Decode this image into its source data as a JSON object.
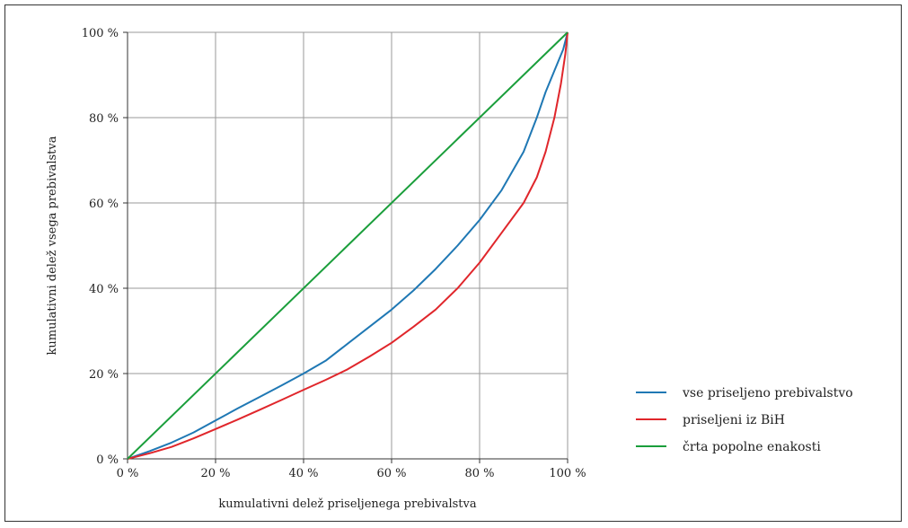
{
  "chart_data": {
    "type": "line",
    "title": "",
    "xlabel": "kumulativni delež priseljenega prebivalstva",
    "ylabel": "kumulativni delež vsega prebivalstva",
    "xlim": [
      0,
      100
    ],
    "ylim": [
      0,
      100
    ],
    "grid": true,
    "legend_position": "bottom-right",
    "x_ticks": [
      "0 %",
      "20 %",
      "40 %",
      "60 %",
      "80 %",
      "100 %"
    ],
    "y_ticks": [
      "0 %",
      "20 %",
      "40 %",
      "60 %",
      "80 %",
      "100 %"
    ],
    "series": [
      {
        "name": "vse priseljeno prebivalstvo",
        "color": "#1f78b4",
        "points": [
          [
            0,
            0
          ],
          [
            5,
            1.8
          ],
          [
            10,
            3.8
          ],
          [
            15,
            6.2
          ],
          [
            20,
            9
          ],
          [
            25,
            11.8
          ],
          [
            30,
            14.5
          ],
          [
            35,
            17.2
          ],
          [
            40,
            20
          ],
          [
            45,
            23
          ],
          [
            50,
            27
          ],
          [
            55,
            31
          ],
          [
            60,
            35
          ],
          [
            65,
            39.5
          ],
          [
            70,
            44.5
          ],
          [
            75,
            50
          ],
          [
            80,
            56
          ],
          [
            85,
            63
          ],
          [
            90,
            72
          ],
          [
            93,
            80
          ],
          [
            95,
            86
          ],
          [
            97,
            91
          ],
          [
            99,
            96
          ],
          [
            100,
            100
          ]
        ]
      },
      {
        "name": "priseljeni iz BiH",
        "color": "#e0262b",
        "points": [
          [
            0,
            0
          ],
          [
            5,
            1.3
          ],
          [
            10,
            2.8
          ],
          [
            15,
            4.8
          ],
          [
            20,
            7
          ],
          [
            25,
            9.2
          ],
          [
            30,
            11.5
          ],
          [
            35,
            13.8
          ],
          [
            40,
            16.2
          ],
          [
            45,
            18.5
          ],
          [
            50,
            21
          ],
          [
            55,
            24
          ],
          [
            60,
            27.2
          ],
          [
            65,
            31
          ],
          [
            70,
            35
          ],
          [
            75,
            40
          ],
          [
            80,
            46
          ],
          [
            85,
            53
          ],
          [
            90,
            60
          ],
          [
            93,
            66
          ],
          [
            95,
            72
          ],
          [
            97,
            80
          ],
          [
            98.5,
            88
          ],
          [
            99.5,
            95
          ],
          [
            100,
            100
          ]
        ]
      },
      {
        "name": "črta popolne enakosti",
        "color": "#1a9e3b",
        "points": [
          [
            0,
            0
          ],
          [
            100,
            100
          ]
        ]
      }
    ]
  }
}
